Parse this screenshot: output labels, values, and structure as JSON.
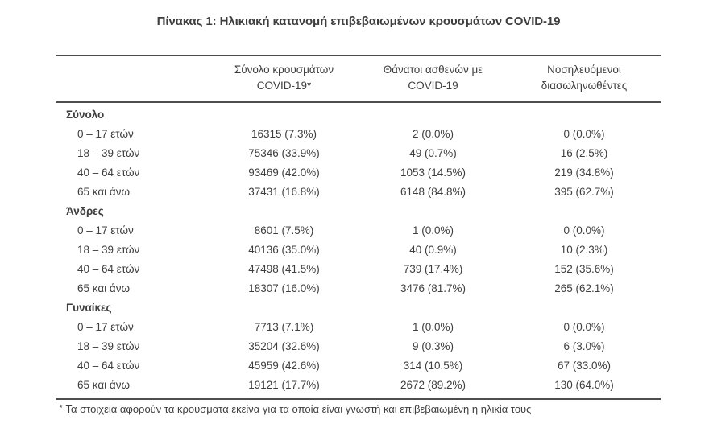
{
  "title": "Πίνακας 1: Ηλικιακή κατανομή επιβεβαιωμένων κρουσμάτων COVID-19",
  "table": {
    "columns": [
      {
        "label": ""
      },
      {
        "line1": "Σύνολο κρουσμάτων",
        "line2": "COVID-19*"
      },
      {
        "line1": "Θάνατοι ασθενών με",
        "line2": "COVID-19"
      },
      {
        "line1": "Νοσηλευόμενοι",
        "line2": "διασωληνωθέντες"
      }
    ],
    "sections": [
      {
        "label": "Σύνολο",
        "rows": [
          {
            "age": "0 – 17 ετών",
            "cases": "16315 (7.3%)",
            "deaths": "2 (0.0%)",
            "intubated": "0 (0.0%)"
          },
          {
            "age": "18 – 39 ετών",
            "cases": "75346 (33.9%)",
            "deaths": "49 (0.7%)",
            "intubated": "16 (2.5%)"
          },
          {
            "age": "40 – 64 ετών",
            "cases": "93469 (42.0%)",
            "deaths": "1053 (14.5%)",
            "intubated": "219 (34.8%)"
          },
          {
            "age": "65 και άνω",
            "cases": "37431 (16.8%)",
            "deaths": "6148 (84.8%)",
            "intubated": "395 (62.7%)"
          }
        ]
      },
      {
        "label": "Άνδρες",
        "rows": [
          {
            "age": "0 – 17 ετών",
            "cases": "8601 (7.5%)",
            "deaths": "1 (0.0%)",
            "intubated": "0 (0.0%)"
          },
          {
            "age": "18 – 39 ετών",
            "cases": "40136 (35.0%)",
            "deaths": "40 (0.9%)",
            "intubated": "10 (2.3%)"
          },
          {
            "age": "40 – 64 ετών",
            "cases": "47498 (41.5%)",
            "deaths": "739 (17.4%)",
            "intubated": "152 (35.6%)"
          },
          {
            "age": "65 και άνω",
            "cases": "18307 (16.0%)",
            "deaths": "3476 (81.7%)",
            "intubated": "265 (62.1%)"
          }
        ]
      },
      {
        "label": "Γυναίκες",
        "rows": [
          {
            "age": "0 – 17 ετών",
            "cases": "7713 (7.1%)",
            "deaths": "1 (0.0%)",
            "intubated": "0 (0.0%)"
          },
          {
            "age": "18 – 39 ετών",
            "cases": "35204 (32.6%)",
            "deaths": "9 (0.3%)",
            "intubated": "6 (3.0%)"
          },
          {
            "age": "40 – 64 ετών",
            "cases": "45959 (42.6%)",
            "deaths": "314 (10.5%)",
            "intubated": "67 (33.0%)"
          },
          {
            "age": "65 και άνω",
            "cases": "19121 (17.7%)",
            "deaths": "2672 (89.2%)",
            "intubated": "130 (64.0%)"
          }
        ]
      }
    ]
  },
  "footnote": {
    "marker": "*",
    "text": "Τα στοιχεία αφορούν τα κρούσματα εκείνα για τα οποία είναι γνωστή και επιβεβαιωμένη η ηλικία τους"
  },
  "colors": {
    "text": "#3e3e3e",
    "rule": "#4d4d4d"
  }
}
